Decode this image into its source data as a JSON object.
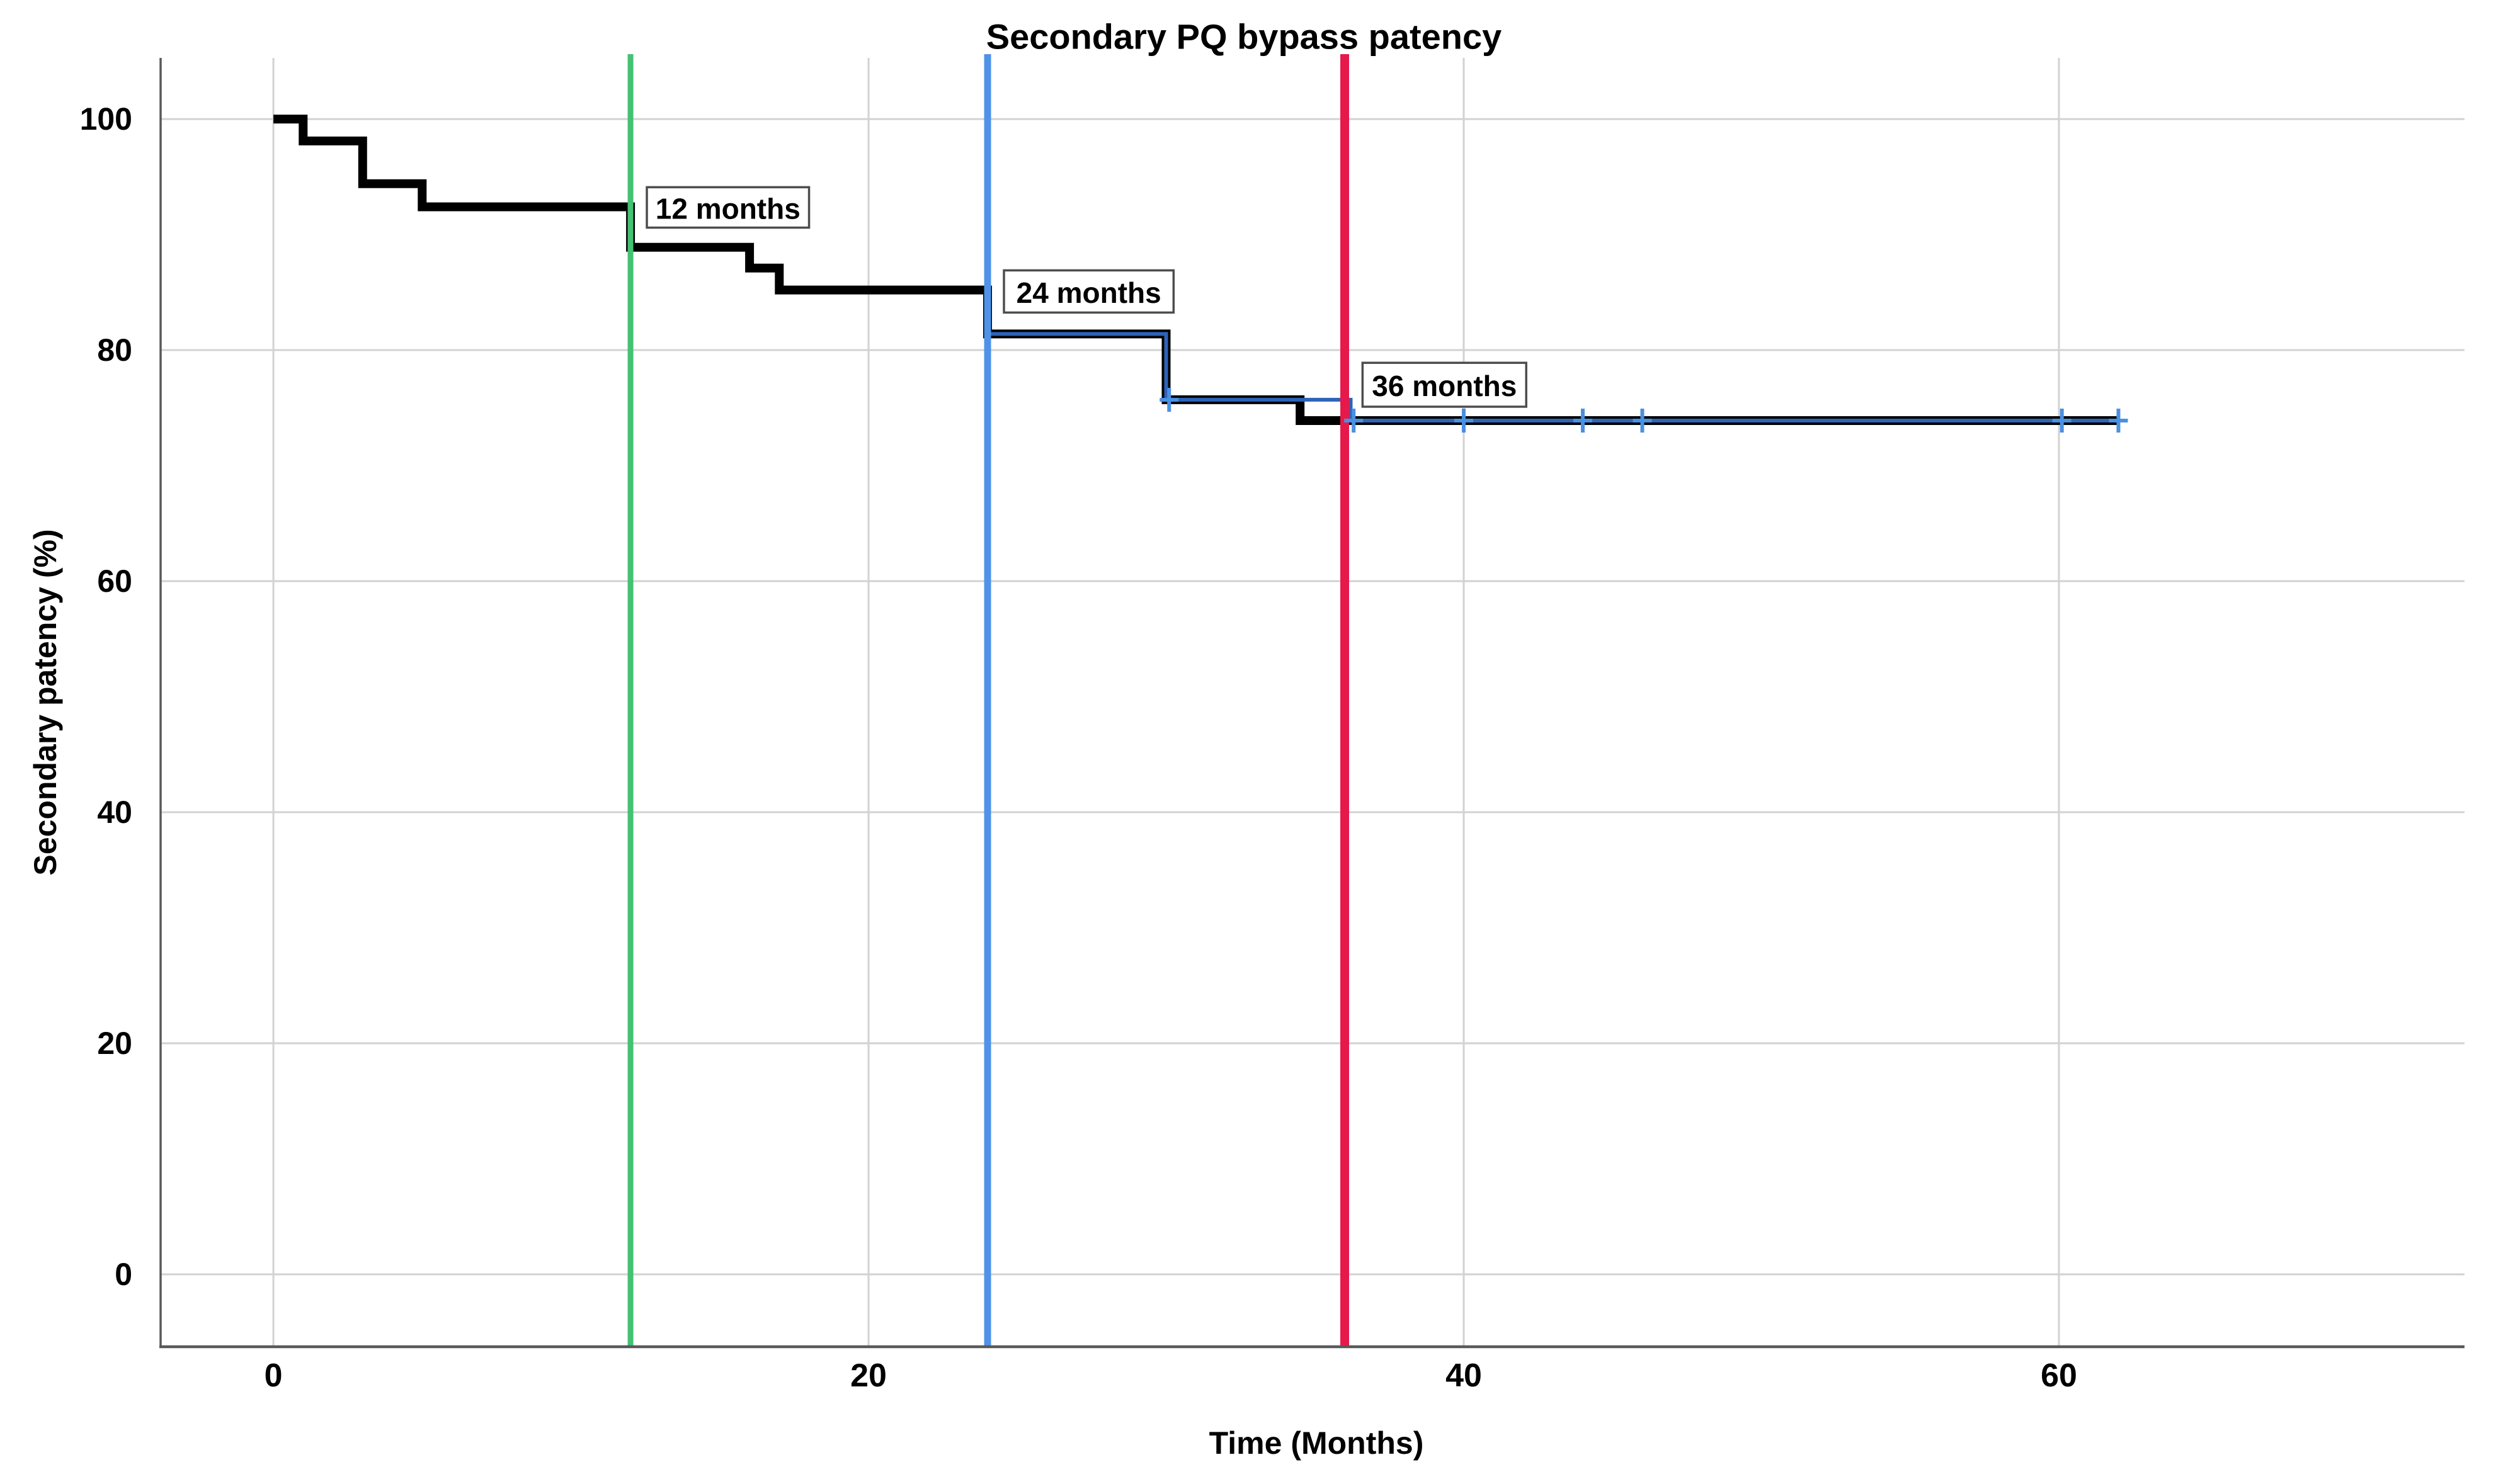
{
  "page": {
    "background": "#ffffff"
  },
  "chart_data": {
    "type": "line",
    "subtype": "kaplan-meier-step",
    "title": "Secondary PQ bypass patency",
    "xlabel": "Time (Months)",
    "ylabel": "Secondary patency (%)",
    "xlim": [
      -3.79,
      73.63
    ],
    "ylim": [
      -6.27,
      105.29
    ],
    "x_ticks": [
      0,
      20,
      40,
      60
    ],
    "y_ticks": [
      0,
      20,
      40,
      60,
      80,
      100
    ],
    "grid": true,
    "legend": "none",
    "series": [
      {
        "name": "secondary-patency-km-curve",
        "color": "#000000",
        "stroke_width": 14,
        "points": [
          [
            0,
            100
          ],
          [
            1,
            100
          ],
          [
            1,
            98.1
          ],
          [
            3,
            98.1
          ],
          [
            3,
            94.4
          ],
          [
            5,
            94.4
          ],
          [
            5,
            92.4
          ],
          [
            12,
            92.4
          ],
          [
            12,
            88.9
          ],
          [
            16,
            88.9
          ],
          [
            16,
            87.1
          ],
          [
            17,
            87.1
          ],
          [
            17,
            85.2
          ],
          [
            24,
            85.2
          ],
          [
            24,
            81.4
          ],
          [
            30,
            81.4
          ],
          [
            30,
            75.7
          ],
          [
            34.5,
            75.7
          ],
          [
            34.5,
            73.9
          ],
          [
            62,
            73.9
          ]
        ]
      },
      {
        "name": "overlay-estimate-blue",
        "color": "#2e63b8",
        "stroke_width": 6,
        "points": [
          [
            24,
            81.4
          ],
          [
            30,
            81.4
          ],
          [
            30,
            75.7
          ],
          [
            36.2,
            75.7
          ],
          [
            36.2,
            73.9
          ],
          [
            62,
            73.9
          ]
        ]
      }
    ],
    "censor_marks": {
      "color": "#4a90e2",
      "points": [
        [
          30.1,
          75.7
        ],
        [
          36.3,
          73.9
        ],
        [
          40,
          73.9
        ],
        [
          44,
          73.9
        ],
        [
          46,
          73.9
        ],
        [
          60.1,
          73.9
        ],
        [
          62,
          73.9
        ]
      ]
    },
    "reference_lines": [
      {
        "label": "12 months",
        "x": 12,
        "color": "#44c173",
        "width": 9
      },
      {
        "label": "24 months",
        "x": 24,
        "color": "#4f93e8",
        "width": 11
      },
      {
        "label": "36 months",
        "x": 36,
        "color": "#e6194b",
        "width": 14
      }
    ],
    "annotations": [
      {
        "text": "12 months",
        "x_left": 12.55,
        "y_top": 94.1,
        "w_months": 5.45,
        "h_units": 3.5
      },
      {
        "text": "24 months",
        "x_left": 24.55,
        "y_top": 86.9,
        "w_months": 5.7,
        "h_units": 3.65
      },
      {
        "text": "36 months",
        "x_left": 36.6,
        "y_top": 78.9,
        "w_months": 5.5,
        "h_units": 3.8
      }
    ],
    "axis_colors": {
      "grid": "#d2d2d2",
      "axis_line": "#595959",
      "annotation_border": "#4d4d4d",
      "annotation_fill": "#ffffff",
      "text": "#000000"
    }
  }
}
